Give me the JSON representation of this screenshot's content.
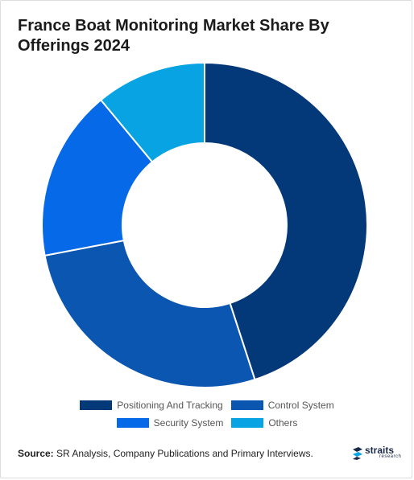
{
  "title": "France Boat Monitoring Market Share By Offerings 2024",
  "chart_data": {
    "type": "pie",
    "variant": "donut",
    "title": "France Boat Monitoring Market Share By Offerings 2024",
    "categories": [
      "Positioning And Tracking",
      "Control System",
      "Security System",
      "Others"
    ],
    "values": [
      45,
      27,
      17,
      11
    ],
    "colors": [
      "#043979",
      "#0b56b0",
      "#066ae8",
      "#08a3e3"
    ],
    "legend_position": "bottom"
  },
  "source": {
    "label": "Source:",
    "text": " SR Analysis, Company Publications and Primary Interviews."
  },
  "logo": {
    "name": "straits",
    "sub": "research"
  }
}
